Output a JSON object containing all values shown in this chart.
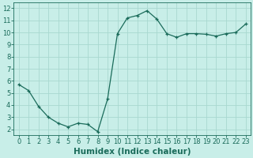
{
  "x": [
    0,
    1,
    2,
    3,
    4,
    5,
    6,
    7,
    8,
    9,
    10,
    11,
    12,
    13,
    14,
    15,
    16,
    17,
    18,
    19,
    20,
    21,
    22,
    23
  ],
  "y": [
    5.7,
    5.2,
    3.9,
    3.0,
    2.5,
    2.2,
    2.5,
    2.4,
    1.8,
    4.5,
    9.9,
    11.2,
    11.4,
    11.8,
    11.1,
    9.9,
    9.6,
    9.9,
    9.9,
    9.85,
    9.7,
    9.9,
    10.0,
    10.7
  ],
  "line_color": "#1a6b5a",
  "marker": "+",
  "bg_color": "#c8eee8",
  "plot_bg_color": "#c8eee8",
  "grid_color": "#a8d8d0",
  "xlabel": "Humidex (Indice chaleur)",
  "xlim": [
    -0.5,
    23.5
  ],
  "ylim": [
    1.5,
    12.5
  ],
  "yticks": [
    2,
    3,
    4,
    5,
    6,
    7,
    8,
    9,
    10,
    11,
    12
  ],
  "xticks": [
    0,
    1,
    2,
    3,
    4,
    5,
    6,
    7,
    8,
    9,
    10,
    11,
    12,
    13,
    14,
    15,
    16,
    17,
    18,
    19,
    20,
    21,
    22,
    23
  ],
  "tick_font_size": 6,
  "label_font_size": 7.5
}
